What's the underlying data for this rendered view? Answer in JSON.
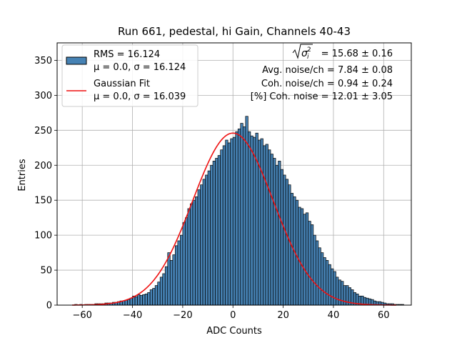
{
  "chart_data": {
    "type": "bar",
    "title": "Run 661, pedestal, hi Gain, Channels 40-43",
    "xlabel": "ADC Counts",
    "ylabel": "Entries",
    "xlim": [
      -70,
      71
    ],
    "ylim": [
      0,
      375
    ],
    "xticks": [
      -60,
      -40,
      -20,
      0,
      20,
      40,
      60
    ],
    "yticks": [
      0,
      50,
      100,
      150,
      200,
      250,
      300,
      350
    ],
    "grid": true,
    "legend_position": "top-left",
    "bar_color": "#4682b4",
    "bar_edge_color": "#000000",
    "fit_color": "#ee1111",
    "legend": [
      {
        "type": "patch",
        "line1": "RMS = 16.124",
        "line2": "μ = 0.0, σ = 16.124"
      },
      {
        "type": "line",
        "line1": "Gaussian Fit",
        "line2": "μ = 0.0, σ = 16.039"
      }
    ],
    "stats": {
      "sigma_label": "= 15.68 ± 0.16",
      "avg_noise": "Avg. noise/ch = 7.84 ± 0.08",
      "coh_noise": "Coh. noise/ch = 0.94 ± 0.24",
      "coh_noise_pct": "[%] Coh. noise = 12.01 ± 3.05"
    },
    "fit": {
      "mu": 0.0,
      "sigma": 16.039,
      "amplitude": 246
    },
    "bins": {
      "start": -63,
      "width": 1,
      "counts": [
        1,
        0,
        1,
        0,
        1,
        1,
        1,
        1,
        2,
        2,
        2,
        2,
        3,
        3,
        3,
        4,
        4,
        5,
        6,
        6,
        7,
        8,
        10,
        13,
        12,
        15,
        14,
        15,
        16,
        18,
        22,
        24,
        28,
        33,
        40,
        45,
        55,
        75,
        64,
        72,
        85,
        92,
        100,
        118,
        125,
        138,
        145,
        150,
        155,
        165,
        172,
        180,
        186,
        192,
        200,
        206,
        210,
        214,
        222,
        228,
        236,
        232,
        238,
        240,
        248,
        252,
        260,
        255,
        270,
        248,
        242,
        240,
        246,
        236,
        238,
        228,
        230,
        222,
        216,
        210,
        200,
        206,
        194,
        186,
        180,
        172,
        160,
        155,
        150,
        140,
        138,
        130,
        132,
        120,
        115,
        100,
        92,
        82,
        75,
        68,
        64,
        58,
        52,
        48,
        40,
        36,
        34,
        28,
        28,
        25,
        22,
        18,
        16,
        13,
        13,
        11,
        10,
        9,
        8,
        6,
        5,
        5,
        4,
        3,
        2,
        2,
        2,
        1,
        1,
        1,
        1,
        0,
        0
      ]
    }
  }
}
